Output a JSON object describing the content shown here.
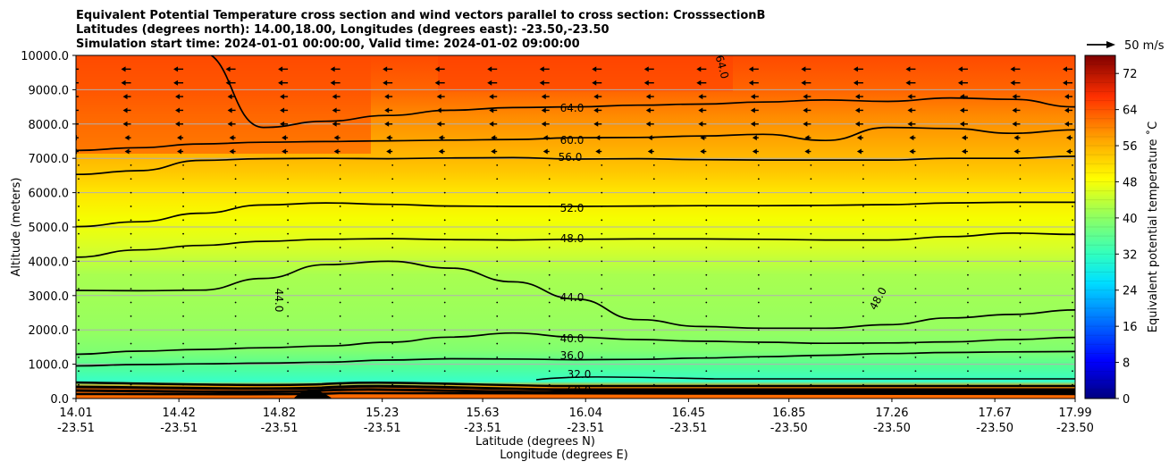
{
  "chart_data": {
    "type": "heatmap",
    "title_lines": [
      "Equivalent Potential Temperature cross section and wind vectors parallel to cross section: CrosssectionB",
      "Latitudes (degrees north): 14.00,18.00, Longitudes (degrees east): -23.50,-23.50",
      "Simulation start time: 2024-01-01 00:00:00, Valid time: 2024-01-02 09:00:00"
    ],
    "ylabel": "Altitude (meters)",
    "xlabel_lines": [
      "Latitude (degrees N)",
      "Longitude (degrees E)"
    ],
    "ylim": [
      0,
      10000
    ],
    "yticks": [
      "0.0",
      "1000.0",
      "2000.0",
      "3000.0",
      "4000.0",
      "5000.0",
      "6000.0",
      "7000.0",
      "8000.0",
      "9000.0",
      "10000.0"
    ],
    "xlim": [
      14.01,
      17.99
    ],
    "xticks": [
      {
        "lat": "14.01",
        "lon": "-23.51",
        "v": 14.01
      },
      {
        "lat": "14.42",
        "lon": "-23.51",
        "v": 14.42
      },
      {
        "lat": "14.82",
        "lon": "-23.51",
        "v": 14.82
      },
      {
        "lat": "15.23",
        "lon": "-23.51",
        "v": 15.23
      },
      {
        "lat": "15.63",
        "lon": "-23.51",
        "v": 15.63
      },
      {
        "lat": "16.04",
        "lon": "-23.51",
        "v": 16.04
      },
      {
        "lat": "16.45",
        "lon": "-23.51",
        "v": 16.45
      },
      {
        "lat": "16.85",
        "lon": "-23.50",
        "v": 16.85
      },
      {
        "lat": "17.26",
        "lon": "-23.50",
        "v": 17.26
      },
      {
        "lat": "17.67",
        "lon": "-23.50",
        "v": 17.67
      },
      {
        "lat": "17.99",
        "lon": "-23.50",
        "v": 17.99
      }
    ],
    "colorbar": {
      "label": "Equivalent potential temperature $^\\circ$C",
      "label_text": "Equivalent potential temperature ˚C",
      "min": 0,
      "max": 76,
      "step": 2,
      "ticks": [
        "0",
        "8",
        "16",
        "24",
        "32",
        "40",
        "48",
        "56",
        "64",
        "72"
      ]
    },
    "wind_key": {
      "label": "50 m/s"
    },
    "contours": [
      {
        "label": "36.0",
        "z": [
          950,
          990,
          1010,
          1030,
          1060,
          1120,
          1160,
          1150,
          1130,
          1140,
          1180,
          1220,
          1260,
          1310,
          1340,
          1360,
          1370
        ]
      },
      {
        "label": "40.0",
        "z": [
          1290,
          1380,
          1430,
          1480,
          1530,
          1640,
          1790,
          1910,
          1790,
          1720,
          1670,
          1640,
          1610,
          1620,
          1650,
          1720,
          1780
        ]
      },
      {
        "label": "44.0",
        "z": [
          3150,
          3140,
          3160,
          3500,
          3900,
          4000,
          3800,
          3400,
          2900,
          2300,
          2100,
          2050,
          2050,
          2150,
          2350,
          2450,
          2580
        ]
      },
      {
        "label": "48.0",
        "z": [
          4120,
          4330,
          4460,
          4580,
          4640,
          4660,
          4630,
          4620,
          4640,
          4650,
          4650,
          4640,
          4620,
          4620,
          4720,
          4820,
          4780
        ]
      },
      {
        "label": "52.0",
        "z": [
          5010,
          5150,
          5400,
          5640,
          5700,
          5660,
          5610,
          5600,
          5600,
          5610,
          5620,
          5620,
          5630,
          5650,
          5700,
          5720,
          5720
        ]
      },
      {
        "label": "56.0",
        "z": [
          6530,
          6640,
          6940,
          6990,
          7000,
          6990,
          7010,
          7020,
          6980,
          6990,
          6960,
          6950,
          6950,
          6950,
          7000,
          7000,
          7060
        ]
      },
      {
        "label": "60.0",
        "z": [
          7230,
          7310,
          7420,
          7470,
          7490,
          7510,
          7530,
          7550,
          7600,
          7610,
          7650,
          7700,
          7520,
          7900,
          7870,
          7730,
          7830
        ]
      },
      {
        "label": "64.0",
        "z": [
          10100,
          10100,
          10100,
          7900,
          8080,
          8250,
          8400,
          8480,
          8500,
          8550,
          8580,
          8640,
          8700,
          8660,
          8760,
          8720,
          8500
        ]
      }
    ],
    "contour_levels": [
      32.0,
      36.0,
      40.0,
      44.0,
      48.0,
      52.0,
      56.0,
      60.0,
      64.0
    ]
  }
}
